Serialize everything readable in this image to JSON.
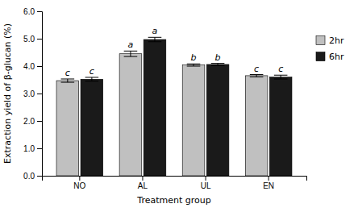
{
  "chart_data": {
    "type": "bar",
    "categories": [
      "NO",
      "AL",
      "UL",
      "EN"
    ],
    "xlabel": "Treatment group",
    "ylabel": "Extraction yield of β-glucan (%)",
    "series": [
      {
        "name": "2hr",
        "color": "#c0c0c0",
        "values": [
          3.47,
          4.45,
          4.04,
          3.65
        ],
        "errors": [
          0.06,
          0.1,
          0.04,
          0.04
        ],
        "annotations": [
          "c",
          "a",
          "b",
          "c"
        ]
      },
      {
        "name": "6hr",
        "color": "#1a1a1a",
        "values": [
          3.52,
          4.97,
          4.06,
          3.6
        ],
        "errors": [
          0.07,
          0.08,
          0.04,
          0.07
        ],
        "annotations": [
          "c",
          "a",
          "b",
          "c"
        ]
      }
    ],
    "ylim": [
      0.0,
      6.0
    ],
    "yticks": [
      {
        "value": 0,
        "label": "0.0"
      },
      {
        "value": 1,
        "label": "1.0"
      },
      {
        "value": 2,
        "label": "2.0"
      },
      {
        "value": 3,
        "label": "3.0"
      },
      {
        "value": 4,
        "label": "4.0"
      },
      {
        "value": 5,
        "label": "5.0"
      },
      {
        "value": 6,
        "label": "6.0"
      }
    ],
    "grid": false,
    "legend": "right"
  }
}
